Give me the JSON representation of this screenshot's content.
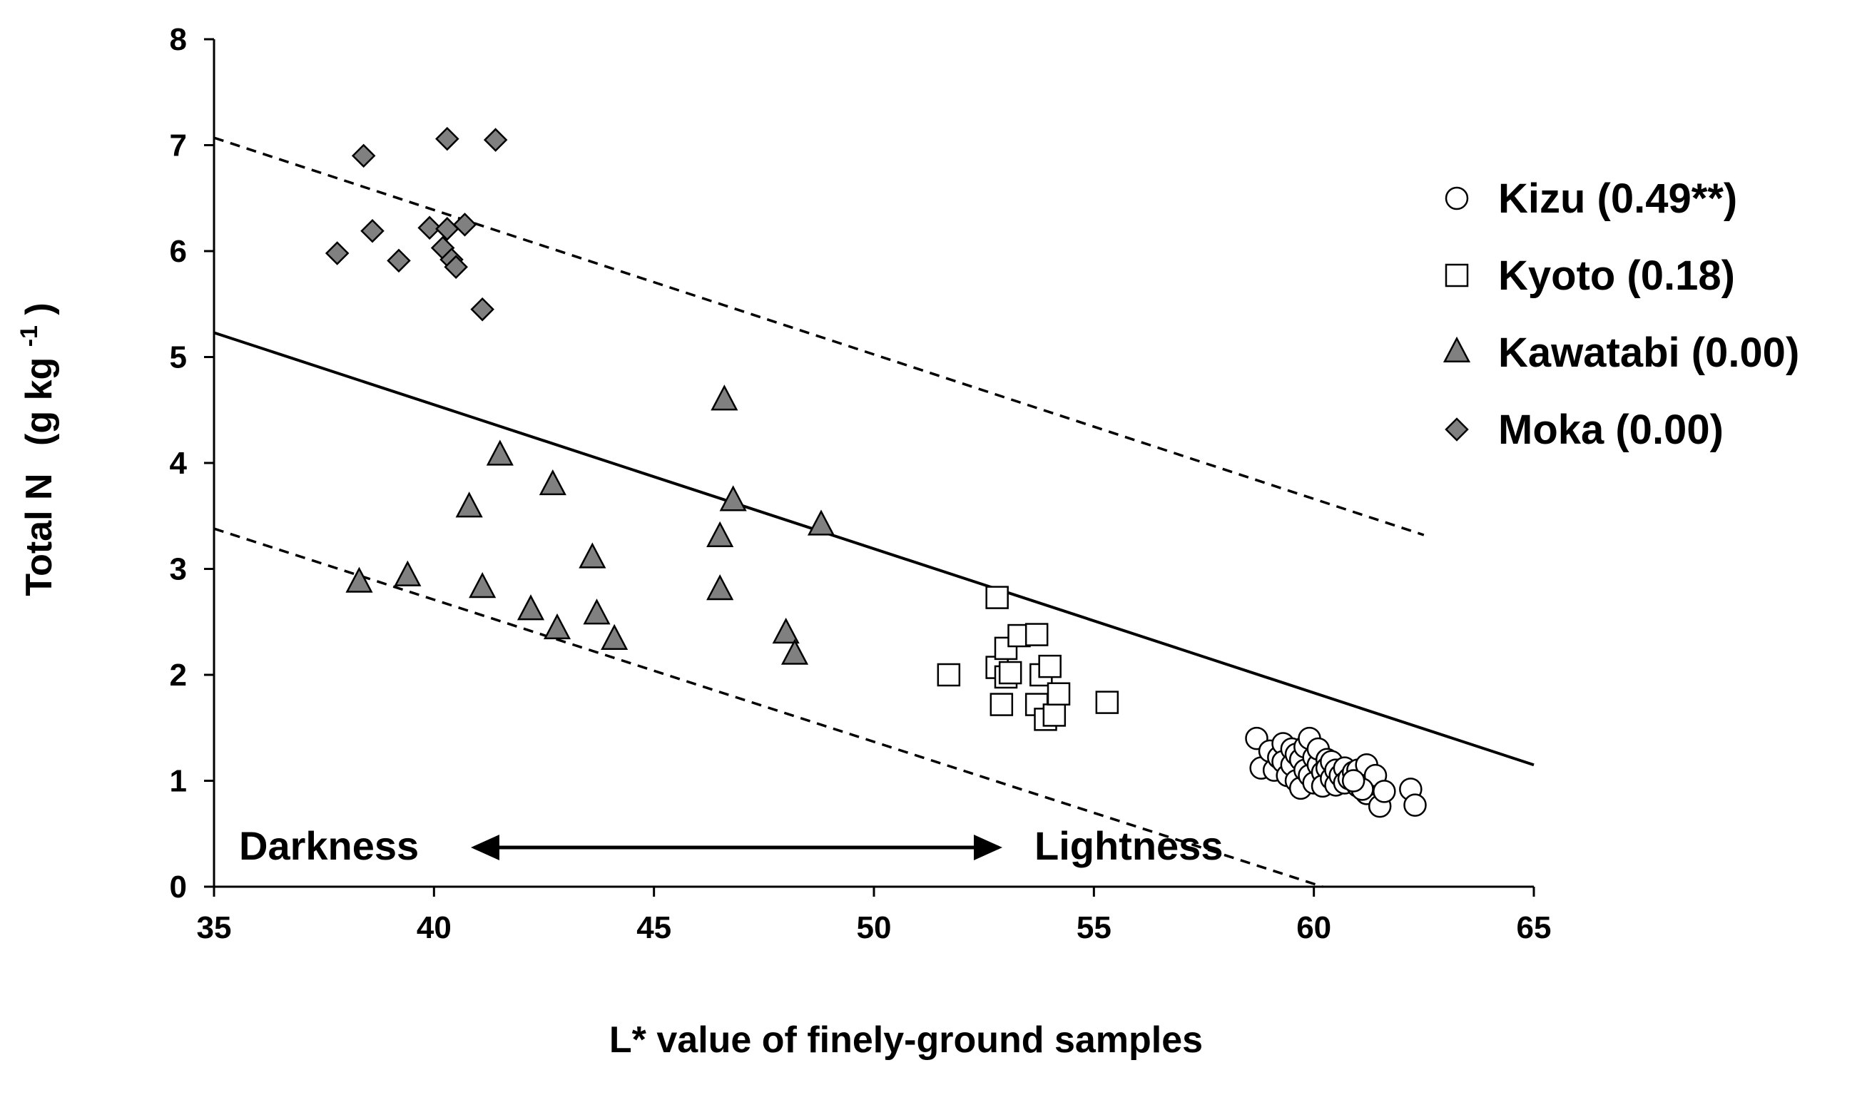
{
  "chart_data": {
    "type": "scatter",
    "title": "",
    "xlabel": "L* value of finely-ground samples",
    "ylabel_main": "Total N",
    "ylabel_unit_prefix": "(g kg",
    "ylabel_unit_exp": "-1",
    "ylabel_unit_suffix": ")",
    "xlim": [
      35,
      65
    ],
    "ylim": [
      0,
      8
    ],
    "xticks": [
      "35",
      "40",
      "45",
      "50",
      "55",
      "60",
      "65"
    ],
    "yticks": [
      "0",
      "1",
      "2",
      "3",
      "4",
      "5",
      "6",
      "7",
      "8"
    ],
    "grid": false,
    "legend_position": "right",
    "series": [
      {
        "name": "Kizu (0.49**)",
        "marker": "circle",
        "fill": "#ffffff",
        "points": [
          [
            58.7,
            1.4
          ],
          [
            58.8,
            1.12
          ],
          [
            59.0,
            1.28
          ],
          [
            59.1,
            1.1
          ],
          [
            59.2,
            1.22
          ],
          [
            59.3,
            1.35
          ],
          [
            59.3,
            1.18
          ],
          [
            59.4,
            1.05
          ],
          [
            59.5,
            1.3
          ],
          [
            59.5,
            1.15
          ],
          [
            59.6,
            1.25
          ],
          [
            59.6,
            1.0
          ],
          [
            59.7,
            1.2
          ],
          [
            59.7,
            0.93
          ],
          [
            59.8,
            1.32
          ],
          [
            59.8,
            1.1
          ],
          [
            59.9,
            1.4
          ],
          [
            59.9,
            1.05
          ],
          [
            60.0,
            1.22
          ],
          [
            60.0,
            0.98
          ],
          [
            60.1,
            1.15
          ],
          [
            60.1,
            1.3
          ],
          [
            60.2,
            1.08
          ],
          [
            60.2,
            0.95
          ],
          [
            60.3,
            1.2
          ],
          [
            60.3,
            1.12
          ],
          [
            60.4,
            1.02
          ],
          [
            60.4,
            1.18
          ],
          [
            60.5,
            1.1
          ],
          [
            60.5,
            0.96
          ],
          [
            60.6,
            1.05
          ],
          [
            60.7,
            1.12
          ],
          [
            60.7,
            0.98
          ],
          [
            60.8,
            1.02
          ],
          [
            60.9,
            1.08
          ],
          [
            61.0,
            0.95
          ],
          [
            61.0,
            1.1
          ],
          [
            61.1,
            1.0
          ],
          [
            61.2,
            0.88
          ],
          [
            61.2,
            1.15
          ],
          [
            61.3,
            0.97
          ],
          [
            61.4,
            1.05
          ],
          [
            61.5,
            0.76
          ],
          [
            61.6,
            0.9
          ],
          [
            62.2,
            0.92
          ],
          [
            62.3,
            0.77
          ],
          [
            61.1,
            0.92
          ],
          [
            60.9,
            1.0
          ]
        ]
      },
      {
        "name": "Kyoto (0.18)",
        "marker": "square",
        "fill": "#ffffff",
        "points": [
          [
            51.7,
            2.0
          ],
          [
            52.8,
            2.73
          ],
          [
            52.8,
            2.07
          ],
          [
            52.9,
            1.72
          ],
          [
            53.0,
            2.25
          ],
          [
            53.0,
            1.98
          ],
          [
            53.1,
            2.02
          ],
          [
            53.3,
            2.37
          ],
          [
            53.7,
            2.38
          ],
          [
            53.7,
            1.72
          ],
          [
            53.8,
            2.0
          ],
          [
            53.9,
            1.58
          ],
          [
            54.0,
            2.08
          ],
          [
            54.1,
            1.62
          ],
          [
            54.2,
            1.82
          ],
          [
            55.3,
            1.74
          ]
        ]
      },
      {
        "name": "Kawatabi (0.00)",
        "marker": "triangle",
        "fill": "#808080",
        "points": [
          [
            38.3,
            2.87
          ],
          [
            39.4,
            2.93
          ],
          [
            40.8,
            3.58
          ],
          [
            41.1,
            2.82
          ],
          [
            41.5,
            4.07
          ],
          [
            42.2,
            2.61
          ],
          [
            42.7,
            3.79
          ],
          [
            42.8,
            2.43
          ],
          [
            43.6,
            3.1
          ],
          [
            43.7,
            2.57
          ],
          [
            44.1,
            2.33
          ],
          [
            46.5,
            2.8
          ],
          [
            46.5,
            3.3
          ],
          [
            46.6,
            4.59
          ],
          [
            46.8,
            3.64
          ],
          [
            48.0,
            2.39
          ],
          [
            48.2,
            2.19
          ],
          [
            48.8,
            3.41
          ]
        ]
      },
      {
        "name": "Moka (0.00)",
        "marker": "diamond",
        "fill": "#808080",
        "points": [
          [
            37.8,
            5.98
          ],
          [
            38.4,
            6.9
          ],
          [
            38.6,
            6.19
          ],
          [
            39.2,
            5.91
          ],
          [
            39.9,
            6.22
          ],
          [
            40.2,
            6.03
          ],
          [
            40.3,
            7.06
          ],
          [
            40.3,
            6.21
          ],
          [
            40.4,
            5.92
          ],
          [
            40.5,
            5.85
          ],
          [
            40.7,
            6.25
          ],
          [
            41.1,
            5.45
          ],
          [
            41.4,
            7.05
          ]
        ]
      }
    ],
    "lines": [
      {
        "style": "solid",
        "x": [
          35,
          65
        ],
        "y": [
          5.23,
          1.15
        ]
      },
      {
        "style": "dashed",
        "x": [
          35,
          62.5
        ],
        "y": [
          7.07,
          3.32
        ]
      },
      {
        "style": "dashed",
        "x": [
          35,
          60.2
        ],
        "y": [
          3.38,
          0.0
        ]
      }
    ],
    "annotations": {
      "left": "Darkness",
      "right": "Lightness"
    }
  }
}
